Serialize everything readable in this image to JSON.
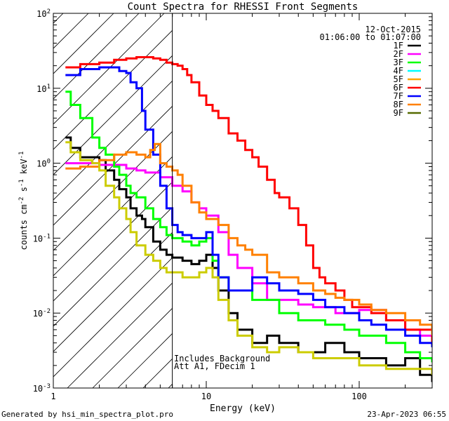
{
  "chart_data": {
    "type": "line",
    "title": "Count Spectra for RHESSI Front Segments",
    "xlabel": "Energy (keV)",
    "ylabel_parts": {
      "base": "counts cm",
      "exp1": "-2",
      "mid": " s",
      "exp2": "-1",
      "mid2": " keV",
      "exp3": "-1"
    },
    "xscale": "log",
    "yscale": "log",
    "xlim": [
      1,
      300
    ],
    "ylim": [
      0.001,
      100
    ],
    "x_ticks": [
      {
        "v": 1,
        "label": "1"
      },
      {
        "v": 10,
        "label": "10"
      },
      {
        "v": 100,
        "label": "100"
      }
    ],
    "y_ticks": [
      {
        "v": 0.001,
        "base": "10",
        "exp": "-3"
      },
      {
        "v": 0.01,
        "base": "10",
        "exp": "-2"
      },
      {
        "v": 0.1,
        "base": "10",
        "exp": "-1"
      },
      {
        "v": 1,
        "base": "10",
        "exp": "0"
      },
      {
        "v": 10,
        "base": "10",
        "exp": "1"
      },
      {
        "v": 100,
        "base": "10",
        "exp": "2"
      }
    ],
    "threshold_energy": 6.0,
    "hatched_region": "left of threshold energy",
    "date": "12-Oct-2015",
    "time_range": "01:06:00 to 01:07:00",
    "annotation_lines": [
      "Includes Background",
      "Att A1, FDecim 1"
    ],
    "legend_position": "top-right",
    "series": [
      {
        "name": "1F",
        "color": "#000000",
        "points": [
          [
            1.2,
            2.2
          ],
          [
            1.3,
            1.6
          ],
          [
            1.5,
            1.2
          ],
          [
            1.8,
            1.2
          ],
          [
            2.0,
            1.1
          ],
          [
            2.2,
            0.8
          ],
          [
            2.5,
            0.6
          ],
          [
            2.7,
            0.45
          ],
          [
            3.0,
            0.35
          ],
          [
            3.2,
            0.25
          ],
          [
            3.5,
            0.2
          ],
          [
            3.8,
            0.18
          ],
          [
            4.0,
            0.14
          ],
          [
            4.5,
            0.09
          ],
          [
            5.0,
            0.07
          ],
          [
            5.5,
            0.06
          ],
          [
            6.0,
            0.055
          ],
          [
            7.0,
            0.05
          ],
          [
            8.0,
            0.045
          ],
          [
            9.0,
            0.05
          ],
          [
            10.0,
            0.06
          ],
          [
            11.0,
            0.04
          ],
          [
            12.0,
            0.02
          ],
          [
            14.0,
            0.01
          ],
          [
            16.0,
            0.006
          ],
          [
            20.0,
            0.004
          ],
          [
            25.0,
            0.005
          ],
          [
            30.0,
            0.004
          ],
          [
            40.0,
            0.003
          ],
          [
            60.0,
            0.004
          ],
          [
            80.0,
            0.003
          ],
          [
            100.0,
            0.0025
          ],
          [
            150.0,
            0.002
          ],
          [
            200.0,
            0.0025
          ],
          [
            250.0,
            0.0015
          ],
          [
            300.0,
            0.0012
          ]
        ]
      },
      {
        "name": "2F",
        "color": "#ff00ff",
        "points": [
          [
            1.2,
            1.0
          ],
          [
            1.5,
            1.0
          ],
          [
            2.0,
            0.95
          ],
          [
            2.5,
            0.95
          ],
          [
            3.0,
            0.85
          ],
          [
            3.5,
            0.8
          ],
          [
            4.0,
            0.75
          ],
          [
            5.0,
            0.65
          ],
          [
            6.0,
            0.5
          ],
          [
            7.0,
            0.42
          ],
          [
            8.0,
            0.3
          ],
          [
            9.0,
            0.25
          ],
          [
            10.0,
            0.2
          ],
          [
            12.0,
            0.12
          ],
          [
            14.0,
            0.06
          ],
          [
            16.0,
            0.04
          ],
          [
            20.0,
            0.025
          ],
          [
            25.0,
            0.015
          ],
          [
            30.0,
            0.015
          ],
          [
            40.0,
            0.013
          ],
          [
            50.0,
            0.012
          ],
          [
            70.0,
            0.01
          ],
          [
            100.0,
            0.011
          ],
          [
            150.0,
            0.008
          ],
          [
            200.0,
            0.006
          ],
          [
            250.0,
            0.005
          ],
          [
            300.0,
            0.004
          ]
        ]
      },
      {
        "name": "3F",
        "color": "#00ff00",
        "points": [
          [
            1.2,
            9.0
          ],
          [
            1.3,
            6.0
          ],
          [
            1.5,
            4.0
          ],
          [
            1.8,
            2.2
          ],
          [
            2.0,
            1.6
          ],
          [
            2.2,
            1.3
          ],
          [
            2.5,
            0.9
          ],
          [
            2.7,
            0.7
          ],
          [
            3.0,
            0.5
          ],
          [
            3.2,
            0.4
          ],
          [
            3.5,
            0.35
          ],
          [
            4.0,
            0.25
          ],
          [
            4.5,
            0.18
          ],
          [
            5.0,
            0.14
          ],
          [
            5.5,
            0.11
          ],
          [
            6.0,
            0.1
          ],
          [
            7.0,
            0.09
          ],
          [
            8.0,
            0.08
          ],
          [
            9.0,
            0.09
          ],
          [
            10.0,
            0.1
          ],
          [
            11.0,
            0.05
          ],
          [
            12.0,
            0.03
          ],
          [
            14.0,
            0.02
          ],
          [
            20.0,
            0.015
          ],
          [
            30.0,
            0.01
          ],
          [
            40.0,
            0.008
          ],
          [
            60.0,
            0.007
          ],
          [
            80.0,
            0.006
          ],
          [
            100.0,
            0.005
          ],
          [
            150.0,
            0.004
          ],
          [
            200.0,
            0.003
          ],
          [
            250.0,
            0.0025
          ],
          [
            300.0,
            0.0022
          ]
        ]
      },
      {
        "name": "4F",
        "color": "#00ffff",
        "points": []
      },
      {
        "name": "5F",
        "color": "#ffa500",
        "points": []
      },
      {
        "name": "6F",
        "color": "#ff0000",
        "points": [
          [
            1.2,
            19.0
          ],
          [
            1.5,
            21.0
          ],
          [
            2.0,
            22.0
          ],
          [
            2.5,
            24.0
          ],
          [
            3.0,
            25.0
          ],
          [
            3.5,
            26.0
          ],
          [
            4.0,
            26.0
          ],
          [
            4.5,
            25.0
          ],
          [
            5.0,
            24.0
          ],
          [
            5.5,
            22.0
          ],
          [
            6.0,
            21.0
          ],
          [
            6.5,
            20.0
          ],
          [
            7.0,
            18.0
          ],
          [
            7.5,
            15.0
          ],
          [
            8.0,
            12.0
          ],
          [
            9.0,
            8.0
          ],
          [
            10.0,
            6.0
          ],
          [
            11.0,
            5.0
          ],
          [
            12.0,
            4.0
          ],
          [
            14.0,
            2.5
          ],
          [
            16.0,
            2.0
          ],
          [
            18.0,
            1.5
          ],
          [
            20.0,
            1.2
          ],
          [
            22.0,
            0.9
          ],
          [
            25.0,
            0.6
          ],
          [
            28.0,
            0.4
          ],
          [
            30.0,
            0.35
          ],
          [
            35.0,
            0.25
          ],
          [
            40.0,
            0.15
          ],
          [
            45.0,
            0.08
          ],
          [
            50.0,
            0.04
          ],
          [
            55.0,
            0.03
          ],
          [
            60.0,
            0.025
          ],
          [
            70.0,
            0.02
          ],
          [
            80.0,
            0.015
          ],
          [
            90.0,
            0.012
          ],
          [
            100.0,
            0.012
          ],
          [
            120.0,
            0.01
          ],
          [
            150.0,
            0.008
          ],
          [
            200.0,
            0.006
          ],
          [
            250.0,
            0.006
          ],
          [
            300.0,
            0.004
          ]
        ]
      },
      {
        "name": "7F",
        "color": "#0000ff",
        "points": [
          [
            1.2,
            15.0
          ],
          [
            1.5,
            18.0
          ],
          [
            2.0,
            19.0
          ],
          [
            2.5,
            19.0
          ],
          [
            2.7,
            17.0
          ],
          [
            3.0,
            16.0
          ],
          [
            3.2,
            12.0
          ],
          [
            3.5,
            10.0
          ],
          [
            3.8,
            5.0
          ],
          [
            4.0,
            2.8
          ],
          [
            4.5,
            1.3
          ],
          [
            5.0,
            0.5
          ],
          [
            5.5,
            0.25
          ],
          [
            6.0,
            0.15
          ],
          [
            6.5,
            0.12
          ],
          [
            7.0,
            0.11
          ],
          [
            8.0,
            0.1
          ],
          [
            9.0,
            0.1
          ],
          [
            10.0,
            0.12
          ],
          [
            11.0,
            0.06
          ],
          [
            12.0,
            0.03
          ],
          [
            14.0,
            0.02
          ],
          [
            16.0,
            0.02
          ],
          [
            20.0,
            0.03
          ],
          [
            25.0,
            0.025
          ],
          [
            30.0,
            0.02
          ],
          [
            40.0,
            0.018
          ],
          [
            50.0,
            0.015
          ],
          [
            60.0,
            0.012
          ],
          [
            80.0,
            0.01
          ],
          [
            100.0,
            0.008
          ],
          [
            120.0,
            0.007
          ],
          [
            150.0,
            0.006
          ],
          [
            200.0,
            0.005
          ],
          [
            250.0,
            0.004
          ],
          [
            300.0,
            0.0035
          ]
        ]
      },
      {
        "name": "8F",
        "color": "#ff8000",
        "points": [
          [
            1.2,
            0.85
          ],
          [
            1.5,
            0.9
          ],
          [
            2.0,
            1.1
          ],
          [
            2.5,
            1.3
          ],
          [
            3.0,
            1.4
          ],
          [
            3.5,
            1.3
          ],
          [
            4.0,
            1.2
          ],
          [
            4.3,
            1.5
          ],
          [
            4.6,
            1.8
          ],
          [
            5.0,
            1.0
          ],
          [
            5.5,
            0.9
          ],
          [
            6.0,
            0.8
          ],
          [
            6.5,
            0.7
          ],
          [
            7.0,
            0.5
          ],
          [
            8.0,
            0.3
          ],
          [
            9.0,
            0.22
          ],
          [
            10.0,
            0.18
          ],
          [
            12.0,
            0.15
          ],
          [
            14.0,
            0.1
          ],
          [
            16.0,
            0.08
          ],
          [
            18.0,
            0.07
          ],
          [
            20.0,
            0.06
          ],
          [
            25.0,
            0.035
          ],
          [
            30.0,
            0.03
          ],
          [
            40.0,
            0.025
          ],
          [
            50.0,
            0.02
          ],
          [
            60.0,
            0.018
          ],
          [
            70.0,
            0.016
          ],
          [
            80.0,
            0.015
          ],
          [
            100.0,
            0.013
          ],
          [
            120.0,
            0.011
          ],
          [
            150.0,
            0.01
          ],
          [
            200.0,
            0.008
          ],
          [
            250.0,
            0.007
          ],
          [
            300.0,
            0.005
          ]
        ]
      },
      {
        "name": "9F",
        "color": "#556b00",
        "points": []
      },
      {
        "name": "",
        "color": "#cccc00",
        "points": [
          [
            1.2,
            1.9
          ],
          [
            1.3,
            1.4
          ],
          [
            1.5,
            1.1
          ],
          [
            1.8,
            1.0
          ],
          [
            2.0,
            0.8
          ],
          [
            2.2,
            0.5
          ],
          [
            2.5,
            0.35
          ],
          [
            2.7,
            0.25
          ],
          [
            3.0,
            0.18
          ],
          [
            3.2,
            0.12
          ],
          [
            3.5,
            0.08
          ],
          [
            4.0,
            0.06
          ],
          [
            4.5,
            0.05
          ],
          [
            5.0,
            0.04
          ],
          [
            5.5,
            0.035
          ],
          [
            6.0,
            0.035
          ],
          [
            7.0,
            0.03
          ],
          [
            8.0,
            0.03
          ],
          [
            9.0,
            0.035
          ],
          [
            10.0,
            0.04
          ],
          [
            11.0,
            0.03
          ],
          [
            12.0,
            0.015
          ],
          [
            14.0,
            0.008
          ],
          [
            16.0,
            0.005
          ],
          [
            20.0,
            0.0035
          ],
          [
            25.0,
            0.003
          ],
          [
            30.0,
            0.0035
          ],
          [
            40.0,
            0.003
          ],
          [
            50.0,
            0.0025
          ],
          [
            70.0,
            0.0025
          ],
          [
            100.0,
            0.002
          ],
          [
            150.0,
            0.0018
          ],
          [
            200.0,
            0.0018
          ],
          [
            300.0,
            0.0015
          ]
        ]
      }
    ]
  },
  "footer": {
    "left": "Generated by hsi_min_spectra_plot.pro",
    "right": "23-Apr-2023 06:55"
  }
}
